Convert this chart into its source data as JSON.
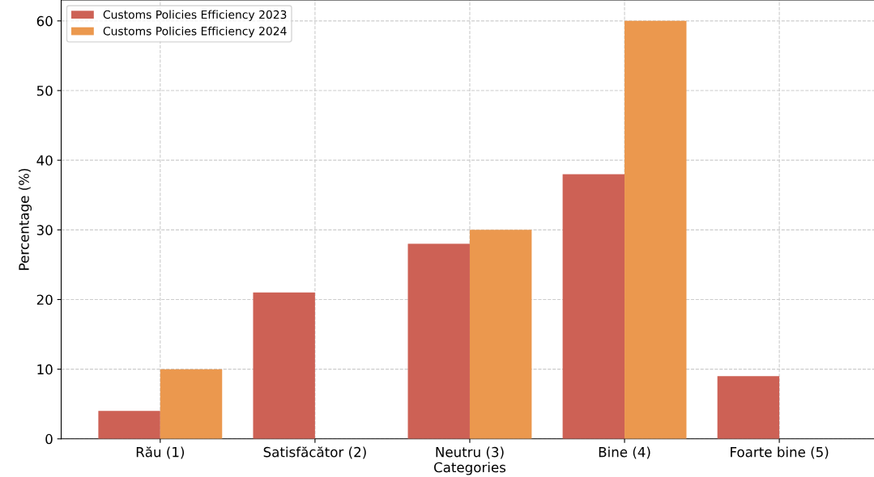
{
  "chart_data": {
    "type": "bar",
    "xlabel": "Categories",
    "ylabel": "Percentage (%)",
    "categories": [
      "Rău (1)",
      "Satisfăcător (2)",
      "Neutru (3)",
      "Bine (4)",
      "Foarte bine (5)"
    ],
    "series": [
      {
        "name": "Customs Policies Efficiency 2023",
        "color": "#cd6155",
        "values": [
          4,
          21,
          28,
          38,
          9
        ]
      },
      {
        "name": "Customs Policies Efficiency 2024",
        "color": "#eb984e",
        "values": [
          10,
          0,
          30,
          60,
          0
        ]
      }
    ],
    "ylim": [
      0,
      63
    ],
    "yticks": [
      0,
      10,
      20,
      30,
      40,
      50,
      60
    ],
    "grid": true,
    "legend": "top left"
  }
}
